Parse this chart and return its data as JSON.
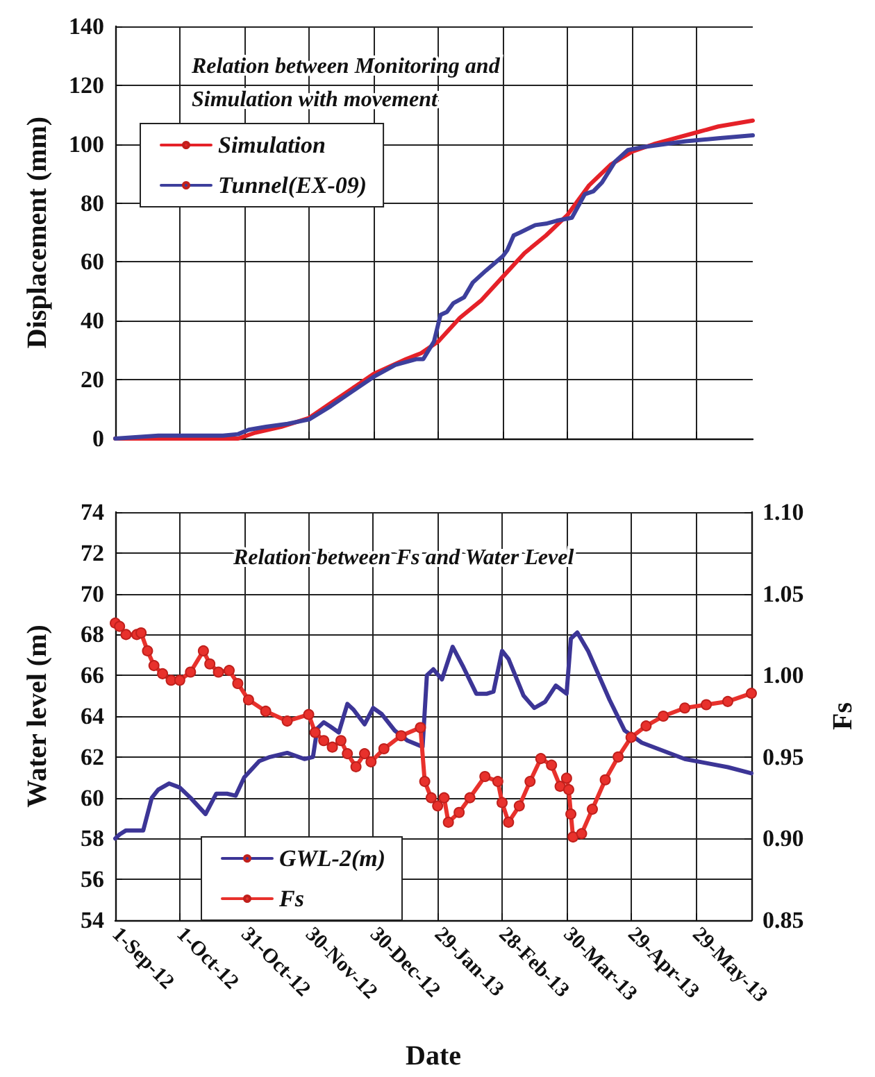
{
  "chart_data": [
    {
      "type": "line",
      "title": "Relation between Monitoring and Simulation with movement",
      "ylabel": "Displacement (mm)",
      "xlim": [
        "2012-09-01",
        "2013-06-24"
      ],
      "xticks": [
        {
          "value": "2012-09-01",
          "label": null
        },
        {
          "value": "2012-10-01",
          "label": null
        },
        {
          "value": "2012-10-31",
          "label": null
        },
        {
          "value": "2012-11-30",
          "label": null
        },
        {
          "value": "2012-12-30",
          "label": null
        },
        {
          "value": "2013-01-29",
          "label": null
        },
        {
          "value": "2013-02-28",
          "label": null
        },
        {
          "value": "2013-03-30",
          "label": null
        },
        {
          "value": "2013-04-29",
          "label": null
        },
        {
          "value": "2013-05-29",
          "label": null
        }
      ],
      "ylim": [
        0,
        140
      ],
      "yticks": [
        0,
        20,
        40,
        60,
        80,
        100,
        120,
        140
      ],
      "tick_labels": "y",
      "grid": true,
      "legend": "top left",
      "series": [
        {
          "name": "Simulation",
          "color": "#e52128",
          "x": [
            "2012-09-01",
            "2012-10-28",
            "2012-11-05",
            "2012-11-17",
            "2012-11-30",
            "2012-12-10",
            "2012-12-20",
            "2012-12-30",
            "2013-01-14",
            "2013-01-21",
            "2013-01-29",
            "2013-02-08",
            "2013-02-18",
            "2013-02-28",
            "2013-03-10",
            "2013-03-20",
            "2013-03-30",
            "2013-04-09",
            "2013-04-19",
            "2013-04-29",
            "2013-05-09",
            "2013-05-19",
            "2013-05-29",
            "2013-06-08",
            "2013-06-24"
          ],
          "values": [
            0,
            0,
            2,
            4,
            7,
            12,
            17,
            22,
            27,
            29,
            33,
            41,
            47,
            55,
            63,
            69,
            76,
            86,
            93,
            97.5,
            100,
            102,
            104,
            106,
            108
          ]
        },
        {
          "name": "Tunnel(EX-09)",
          "color": "#3d3f9c",
          "x": [
            "2012-09-01",
            "2012-09-21",
            "2012-10-21",
            "2012-10-28",
            "2012-11-02",
            "2012-11-10",
            "2012-11-20",
            "2012-11-30",
            "2012-12-10",
            "2012-12-20",
            "2012-12-30",
            "2013-01-09",
            "2013-01-19",
            "2013-01-22",
            "2013-01-27",
            "2013-01-30",
            "2013-02-02",
            "2013-02-05",
            "2013-02-10",
            "2013-02-14",
            "2013-02-20",
            "2013-02-28",
            "2013-03-02",
            "2013-03-05",
            "2013-03-08",
            "2013-03-15",
            "2013-03-20",
            "2013-03-25",
            "2013-04-01",
            "2013-04-07",
            "2013-04-11",
            "2013-04-15",
            "2013-04-21",
            "2013-04-27",
            "2013-05-04",
            "2013-05-14",
            "2013-05-24",
            "2013-06-08",
            "2013-06-24"
          ],
          "values": [
            0,
            1,
            1,
            1.5,
            3,
            4,
            5,
            6.5,
            11,
            16,
            21,
            25,
            27,
            27,
            33,
            42,
            43,
            46,
            48,
            53,
            57,
            62,
            64,
            69,
            70,
            72.5,
            73,
            74,
            75,
            83,
            84,
            87,
            94,
            98,
            99,
            100,
            101,
            102,
            103
          ]
        }
      ]
    },
    {
      "type": "line",
      "title": "Relation between Fs and Water Level",
      "xlabel": "Date",
      "ylabel": "Water level (m)",
      "y2label": "Fs",
      "xlim": [
        "2012-09-01",
        "2013-06-24"
      ],
      "xticks": [
        {
          "value": "2012-09-01",
          "label": "1-Sep-12"
        },
        {
          "value": "2012-10-01",
          "label": "1-Oct-12"
        },
        {
          "value": "2012-10-31",
          "label": "31-Oct-12"
        },
        {
          "value": "2012-11-30",
          "label": "30-Nov-12"
        },
        {
          "value": "2012-12-30",
          "label": "30-Dec-12"
        },
        {
          "value": "2013-01-29",
          "label": "29-Jan-13"
        },
        {
          "value": "2013-02-28",
          "label": "28-Feb-13"
        },
        {
          "value": "2013-03-30",
          "label": "30-Mar-13"
        },
        {
          "value": "2013-04-29",
          "label": "29-Apr-13"
        },
        {
          "value": "2013-05-29",
          "label": "29-May-13"
        }
      ],
      "ylim": [
        54,
        74
      ],
      "yticks": [
        54,
        56,
        58,
        60,
        62,
        64,
        66,
        68,
        70,
        72,
        74
      ],
      "y2lim": [
        0.85,
        1.1
      ],
      "y2ticks": [
        {
          "value": 0.85,
          "label": "0.85"
        },
        {
          "value": 0.9,
          "label": "0.90"
        },
        {
          "value": 0.95,
          "label": "0.95"
        },
        {
          "value": 1.0,
          "label": "1.00"
        },
        {
          "value": 1.05,
          "label": "1.05"
        },
        {
          "value": 1.1,
          "label": "1.10"
        }
      ],
      "grid": true,
      "legend": "bottom left",
      "series": [
        {
          "name": "GWL-2(m)",
          "color": "#3c3596",
          "x": [
            "2012-09-01",
            "2012-09-03",
            "2012-09-06",
            "2012-09-11",
            "2012-09-14",
            "2012-09-18",
            "2012-09-21",
            "2012-09-26",
            "2012-10-01",
            "2012-10-06",
            "2012-10-13",
            "2012-10-18",
            "2012-10-23",
            "2012-10-27",
            "2012-10-31",
            "2012-11-07",
            "2012-11-12",
            "2012-11-20",
            "2012-11-28",
            "2012-12-02",
            "2012-12-04",
            "2012-12-07",
            "2012-12-10",
            "2012-12-14",
            "2012-12-18",
            "2012-12-21",
            "2012-12-26",
            "2012-12-30",
            "2013-01-03",
            "2013-01-09",
            "2013-01-15",
            "2013-01-22",
            "2013-01-24",
            "2013-01-27",
            "2013-01-31",
            "2013-02-05",
            "2013-02-10",
            "2013-02-16",
            "2013-02-21",
            "2013-02-24",
            "2013-02-28",
            "2013-03-03",
            "2013-03-10",
            "2013-03-15",
            "2013-03-20",
            "2013-03-25",
            "2013-03-30",
            "2013-04-01",
            "2013-04-04",
            "2013-04-09",
            "2013-04-19",
            "2013-04-26",
            "2013-05-04",
            "2013-05-14",
            "2013-05-24",
            "2013-06-03",
            "2013-06-13",
            "2013-06-24"
          ],
          "values": [
            58.0,
            58.2,
            58.4,
            58.4,
            58.4,
            60.0,
            60.4,
            60.7,
            60.5,
            60.0,
            59.2,
            60.2,
            60.2,
            60.1,
            61.0,
            61.8,
            62.0,
            62.2,
            61.9,
            62.0,
            63.4,
            63.7,
            63.5,
            63.2,
            64.6,
            64.3,
            63.6,
            64.4,
            64.1,
            63.3,
            62.8,
            62.5,
            66.0,
            66.3,
            65.8,
            67.4,
            66.4,
            65.1,
            65.1,
            65.2,
            67.2,
            66.8,
            65.0,
            64.4,
            64.7,
            65.5,
            65.1,
            67.8,
            68.1,
            67.2,
            64.8,
            63.3,
            62.7,
            62.3,
            61.9,
            61.7,
            61.5,
            61.2
          ]
        },
        {
          "name": "Fs",
          "color": "#e8312c",
          "axis": "y2",
          "marker": "circle",
          "x": [
            "2012-09-01",
            "2012-09-03",
            "2012-09-06",
            "2012-09-11",
            "2012-09-13",
            "2012-09-16",
            "2012-09-19",
            "2012-09-23",
            "2012-09-27",
            "2012-10-01",
            "2012-10-06",
            "2012-10-12",
            "2012-10-15",
            "2012-10-19",
            "2012-10-24",
            "2012-10-28",
            "2012-11-02",
            "2012-11-10",
            "2012-11-20",
            "2012-11-30",
            "2012-12-03",
            "2012-12-07",
            "2012-12-11",
            "2012-12-15",
            "2012-12-18",
            "2012-12-22",
            "2012-12-26",
            "2012-12-29",
            "2013-01-04",
            "2013-01-12",
            "2013-01-21",
            "2013-01-23",
            "2013-01-26",
            "2013-01-29",
            "2013-02-01",
            "2013-02-03",
            "2013-02-08",
            "2013-02-13",
            "2013-02-20",
            "2013-02-26",
            "2013-02-28",
            "2013-03-03",
            "2013-03-08",
            "2013-03-13",
            "2013-03-18",
            "2013-03-23",
            "2013-03-27",
            "2013-03-30",
            "2013-03-31",
            "2013-04-01",
            "2013-04-02",
            "2013-04-06",
            "2013-04-11",
            "2013-04-17",
            "2013-04-23",
            "2013-04-29",
            "2013-05-06",
            "2013-05-14",
            "2013-05-24",
            "2013-06-03",
            "2013-06-13",
            "2013-06-24"
          ],
          "values": [
            1.032,
            1.03,
            1.025,
            1.025,
            1.026,
            1.015,
            1.006,
            1.001,
            0.997,
            0.997,
            1.002,
            1.015,
            1.007,
            1.002,
            1.003,
            0.995,
            0.985,
            0.978,
            0.972,
            0.976,
            0.965,
            0.96,
            0.956,
            0.96,
            0.952,
            0.944,
            0.952,
            0.947,
            0.955,
            0.963,
            0.968,
            0.935,
            0.925,
            0.92,
            0.925,
            0.91,
            0.916,
            0.925,
            0.938,
            0.935,
            0.922,
            0.91,
            0.92,
            0.935,
            0.949,
            0.945,
            0.932,
            0.937,
            0.93,
            0.915,
            0.901,
            0.903,
            0.918,
            0.936,
            0.95,
            0.962,
            0.969,
            0.975,
            0.98,
            0.982,
            0.984,
            0.989
          ]
        }
      ]
    }
  ]
}
